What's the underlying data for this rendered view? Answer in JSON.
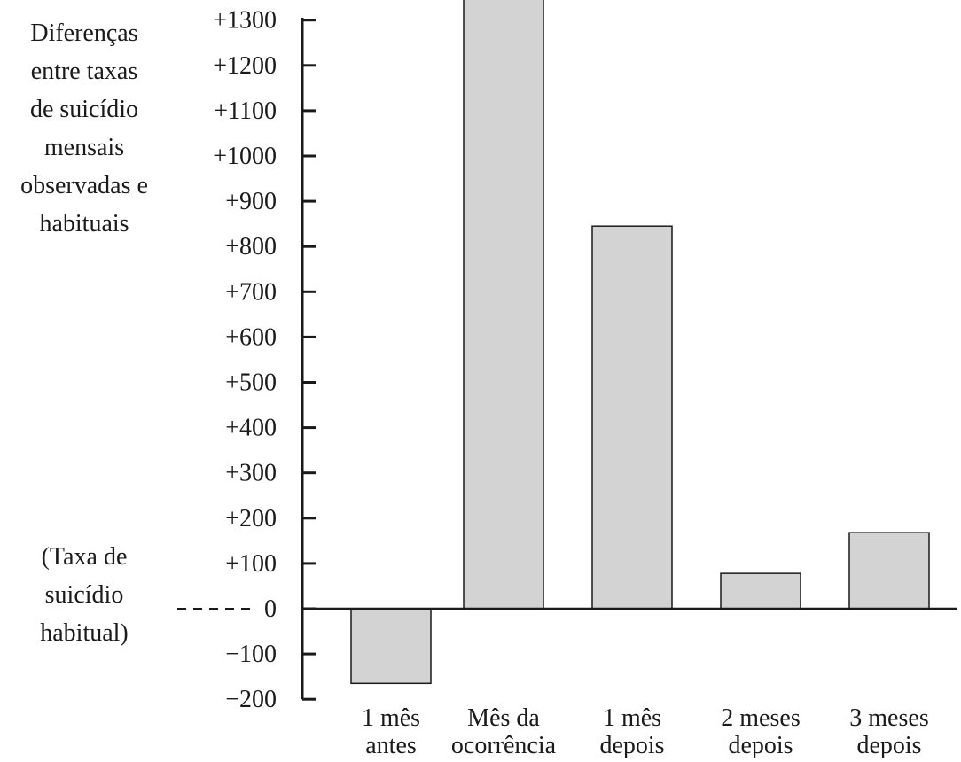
{
  "chart_data": {
    "type": "bar",
    "ylabel": [
      "Diferenças",
      "entre taxas",
      "de suicídio",
      "mensais",
      "observadas e",
      "habituais"
    ],
    "baseline_label": [
      "(Taxa de",
      "suicídio",
      "habitual)"
    ],
    "categories": [
      [
        "1 mês",
        "antes"
      ],
      [
        "Mês da",
        "ocorrência"
      ],
      [
        "1 mês",
        "depois"
      ],
      [
        "2 meses",
        "depois"
      ],
      [
        "3 meses",
        "depois"
      ]
    ],
    "values": [
      -165,
      1350,
      845,
      78,
      168
    ],
    "ylim": [
      -200,
      1300
    ],
    "yticks": [
      {
        "value": 1300,
        "label": "+1300"
      },
      {
        "value": 1200,
        "label": "+1200"
      },
      {
        "value": 1100,
        "label": "+1100"
      },
      {
        "value": 1000,
        "label": "+1000"
      },
      {
        "value": 900,
        "label": "+900"
      },
      {
        "value": 800,
        "label": "+800"
      },
      {
        "value": 700,
        "label": "+700"
      },
      {
        "value": 600,
        "label": "+600"
      },
      {
        "value": 500,
        "label": "+500"
      },
      {
        "value": 400,
        "label": "+400"
      },
      {
        "value": 300,
        "label": "+300"
      },
      {
        "value": 200,
        "label": "+200"
      },
      {
        "value": 100,
        "label": "+100"
      },
      {
        "value": 0,
        "label": "0"
      },
      {
        "value": -100,
        "label": "−100"
      },
      {
        "value": -200,
        "label": "−200"
      }
    ],
    "bar_fill": "#d3d3d3",
    "bar_stroke": "#1a1a1a",
    "axis_color": "#1a1a1a",
    "grid": false
  }
}
